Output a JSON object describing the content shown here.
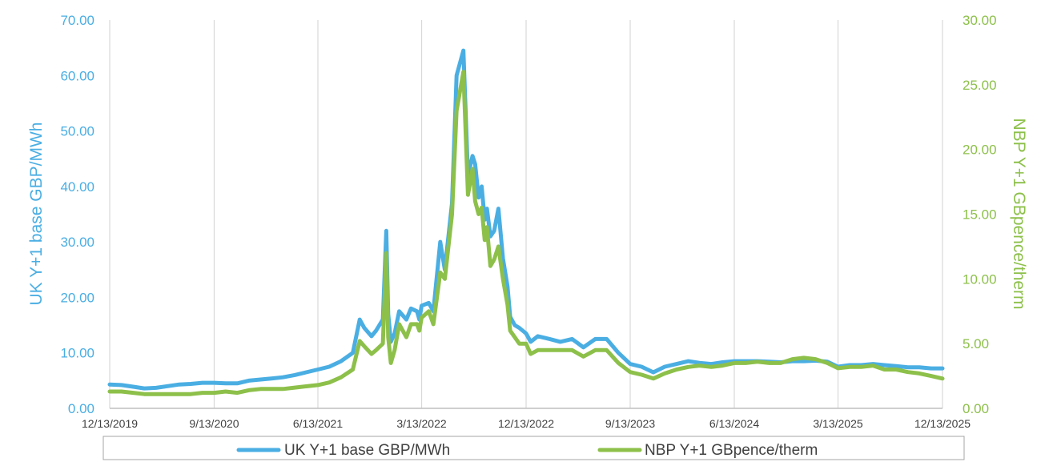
{
  "chart_data": {
    "type": "line",
    "title": "",
    "xlabel": "",
    "x_ticks": [
      "12/13/2019",
      "9/13/2020",
      "6/13/2021",
      "3/13/2022",
      "12/13/2022",
      "9/13/2023",
      "6/13/2024",
      "3/13/2025",
      "12/13/2025"
    ],
    "y_left": {
      "label": "UK Y+1 base GBP/MWh",
      "ylim": [
        0,
        70
      ],
      "ticks": [
        "0.00",
        "10.00",
        "20.00",
        "30.00",
        "40.00",
        "50.00",
        "60.00",
        "70.00"
      ],
      "color": "#4AAEE3"
    },
    "y_right": {
      "label": "NBP Y+1 GBpence/therm",
      "ylim": [
        0,
        30
      ],
      "ticks": [
        "0.00",
        "5.00",
        "10.00",
        "15.00",
        "20.00",
        "25.00",
        "30.00"
      ],
      "color": "#8DC04A"
    },
    "grid": "vertical",
    "legend_position": "bottom",
    "series": [
      {
        "name": "UK Y+1 base GBP/MWh",
        "axis": "left",
        "color": "#4AAEE3",
        "x": [
          "2019-12-13",
          "2020-01-13",
          "2020-02-13",
          "2020-03-13",
          "2020-04-13",
          "2020-05-13",
          "2020-06-13",
          "2020-07-13",
          "2020-08-13",
          "2020-09-13",
          "2020-10-13",
          "2020-11-13",
          "2020-12-13",
          "2021-01-13",
          "2021-02-13",
          "2021-03-13",
          "2021-04-13",
          "2021-05-13",
          "2021-06-13",
          "2021-07-13",
          "2021-08-13",
          "2021-09-13",
          "2021-10-01",
          "2021-10-13",
          "2021-11-01",
          "2021-11-13",
          "2021-12-01",
          "2021-12-10",
          "2021-12-15",
          "2021-12-22",
          "2022-01-01",
          "2022-01-13",
          "2022-02-01",
          "2022-02-13",
          "2022-03-01",
          "2022-03-07",
          "2022-03-13",
          "2022-04-01",
          "2022-04-13",
          "2022-05-01",
          "2022-05-13",
          "2022-06-01",
          "2022-06-13",
          "2022-07-01",
          "2022-07-13",
          "2022-07-25",
          "2022-08-01",
          "2022-08-10",
          "2022-08-18",
          "2022-08-26",
          "2022-09-01",
          "2022-09-10",
          "2022-09-20",
          "2022-10-01",
          "2022-10-13",
          "2022-10-25",
          "2022-11-01",
          "2022-11-13",
          "2022-11-25",
          "2022-12-13",
          "2022-12-25",
          "2023-01-13",
          "2023-02-13",
          "2023-03-13",
          "2023-04-13",
          "2023-05-13",
          "2023-06-13",
          "2023-07-13",
          "2023-08-13",
          "2023-09-13",
          "2023-10-13",
          "2023-11-13",
          "2023-12-13",
          "2024-01-13",
          "2024-02-13",
          "2024-03-13",
          "2024-04-13",
          "2024-05-13",
          "2024-06-13",
          "2024-07-13",
          "2024-08-13",
          "2024-09-13",
          "2024-10-13",
          "2024-11-13",
          "2024-12-13",
          "2025-01-13",
          "2025-02-13",
          "2025-03-13",
          "2025-04-13",
          "2025-05-13",
          "2025-06-13",
          "2025-07-13",
          "2025-08-13",
          "2025-09-13",
          "2025-10-13",
          "2025-11-13",
          "2025-12-13"
        ],
        "values": [
          4.3,
          4.2,
          3.9,
          3.6,
          3.7,
          4.0,
          4.3,
          4.4,
          4.6,
          4.6,
          4.5,
          4.5,
          5.0,
          5.2,
          5.4,
          5.6,
          6.0,
          6.5,
          7.0,
          7.5,
          8.5,
          10.0,
          16.0,
          14.5,
          13.0,
          14.0,
          16.0,
          32.0,
          17.0,
          12.0,
          13.5,
          17.5,
          16.0,
          18.0,
          17.5,
          16.0,
          18.5,
          19.0,
          17.5,
          30.0,
          25.0,
          37.0,
          60.0,
          64.5,
          42.0,
          45.5,
          44.0,
          38.0,
          40.0,
          34.0,
          36.0,
          31.0,
          32.0,
          36.0,
          27.0,
          22.0,
          16.5,
          15.0,
          14.5,
          13.5,
          12.0,
          13.0,
          12.5,
          12.0,
          12.5,
          11.0,
          12.5,
          12.5,
          10.0,
          8.0,
          7.5,
          6.5,
          7.5,
          8.0,
          8.5,
          8.2,
          8.0,
          8.3,
          8.5,
          8.5,
          8.5,
          8.4,
          8.3,
          8.5,
          8.5,
          8.6,
          8.4,
          7.5,
          7.8,
          7.8,
          8.0,
          7.8,
          7.6,
          7.4,
          7.4,
          7.2,
          7.2
        ]
      },
      {
        "name": "NBP Y+1 GBpence/therm",
        "axis": "right",
        "color": "#8DC04A",
        "x": [
          "2019-12-13",
          "2020-01-13",
          "2020-02-13",
          "2020-03-13",
          "2020-04-13",
          "2020-05-13",
          "2020-06-13",
          "2020-07-13",
          "2020-08-13",
          "2020-09-13",
          "2020-10-13",
          "2020-11-13",
          "2020-12-13",
          "2021-01-13",
          "2021-02-13",
          "2021-03-13",
          "2021-04-13",
          "2021-05-13",
          "2021-06-13",
          "2021-07-13",
          "2021-08-13",
          "2021-09-13",
          "2021-10-01",
          "2021-10-13",
          "2021-11-01",
          "2021-11-13",
          "2021-12-01",
          "2021-12-10",
          "2021-12-15",
          "2021-12-22",
          "2022-01-01",
          "2022-01-13",
          "2022-02-01",
          "2022-02-13",
          "2022-03-01",
          "2022-03-07",
          "2022-03-13",
          "2022-04-01",
          "2022-04-13",
          "2022-05-01",
          "2022-05-13",
          "2022-06-01",
          "2022-06-13",
          "2022-07-01",
          "2022-07-13",
          "2022-07-25",
          "2022-08-01",
          "2022-08-10",
          "2022-08-18",
          "2022-08-26",
          "2022-09-01",
          "2022-09-10",
          "2022-09-20",
          "2022-10-01",
          "2022-10-13",
          "2022-10-25",
          "2022-11-01",
          "2022-11-13",
          "2022-11-25",
          "2022-12-13",
          "2022-12-25",
          "2023-01-13",
          "2023-02-13",
          "2023-03-13",
          "2023-04-13",
          "2023-05-13",
          "2023-06-13",
          "2023-07-13",
          "2023-08-13",
          "2023-09-13",
          "2023-10-13",
          "2023-11-13",
          "2023-12-13",
          "2024-01-13",
          "2024-02-13",
          "2024-03-13",
          "2024-04-13",
          "2024-05-13",
          "2024-06-13",
          "2024-07-13",
          "2024-08-13",
          "2024-09-13",
          "2024-10-13",
          "2024-11-13",
          "2024-12-13",
          "2025-01-13",
          "2025-02-13",
          "2025-03-13",
          "2025-04-13",
          "2025-05-13",
          "2025-06-13",
          "2025-07-13",
          "2025-08-13",
          "2025-09-13",
          "2025-10-13",
          "2025-11-13",
          "2025-12-13"
        ],
        "values": [
          1.3,
          1.3,
          1.2,
          1.1,
          1.1,
          1.1,
          1.1,
          1.1,
          1.2,
          1.2,
          1.3,
          1.2,
          1.4,
          1.5,
          1.5,
          1.5,
          1.6,
          1.7,
          1.8,
          2.0,
          2.4,
          3.0,
          5.2,
          4.8,
          4.2,
          4.5,
          5.0,
          12.0,
          5.5,
          3.5,
          4.5,
          6.5,
          5.5,
          6.5,
          6.5,
          6.0,
          7.0,
          7.5,
          6.5,
          10.5,
          10.0,
          15.0,
          23.0,
          26.0,
          16.5,
          18.5,
          16.0,
          15.0,
          15.5,
          13.0,
          14.0,
          11.0,
          11.5,
          12.5,
          10.0,
          8.0,
          6.0,
          5.5,
          5.0,
          5.0,
          4.2,
          4.5,
          4.5,
          4.5,
          4.5,
          4.0,
          4.5,
          4.5,
          3.5,
          2.8,
          2.6,
          2.3,
          2.7,
          3.0,
          3.2,
          3.3,
          3.2,
          3.3,
          3.5,
          3.5,
          3.6,
          3.5,
          3.5,
          3.8,
          3.9,
          3.8,
          3.5,
          3.1,
          3.2,
          3.2,
          3.3,
          3.0,
          3.0,
          2.8,
          2.7,
          2.5,
          2.3
        ]
      }
    ]
  }
}
